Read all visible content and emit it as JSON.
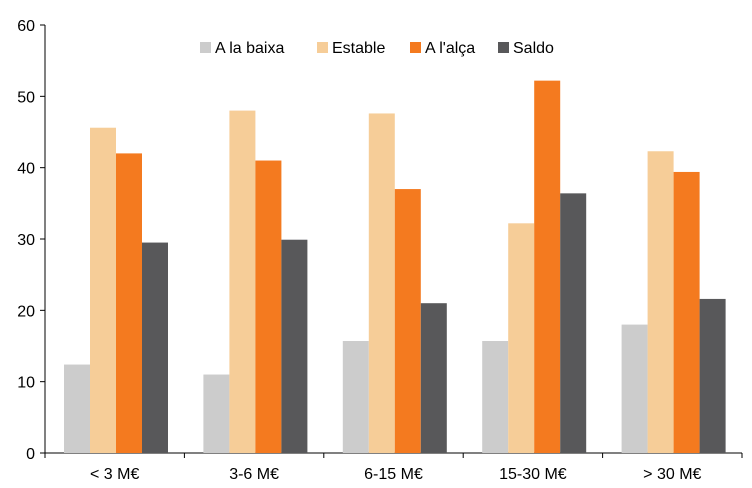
{
  "chart_data": {
    "type": "bar",
    "categories": [
      "< 3 M€",
      "3-6 M€",
      "6-15 M€",
      "15-30 M€",
      "> 30 M€"
    ],
    "series": [
      {
        "name": "A la baixa",
        "color": "#cccccc",
        "values": [
          12.4,
          11.0,
          15.7,
          15.7,
          18.0
        ]
      },
      {
        "name": "Estable",
        "color": "#f6cd98",
        "values": [
          45.6,
          48.0,
          47.6,
          32.2,
          42.3
        ]
      },
      {
        "name": "A l'alça",
        "color": "#f47a1f",
        "values": [
          42.0,
          41.0,
          37.0,
          52.2,
          39.4
        ]
      },
      {
        "name": "Saldo",
        "color": "#58585a",
        "values": [
          29.5,
          29.9,
          21.0,
          36.4,
          21.6
        ]
      }
    ],
    "yticks": [
      "0",
      "10",
      "20",
      "30",
      "40",
      "50",
      "60"
    ],
    "ylim": [
      0,
      60
    ],
    "title": "",
    "xlabel": "",
    "ylabel": "",
    "grid": false,
    "legend_position": "top-center"
  }
}
